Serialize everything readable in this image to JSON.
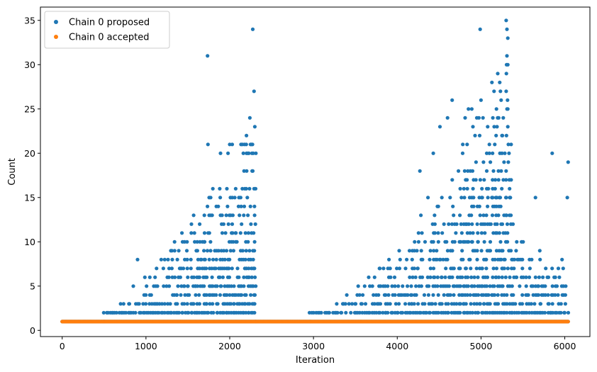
{
  "chart_data": {
    "type": "scatter",
    "title": "",
    "xlabel": "Iteration",
    "ylabel": "Count",
    "xlim": [
      -260,
      6300
    ],
    "ylim": [
      -0.7,
      36.5
    ],
    "xticks": [
      0,
      1000,
      2000,
      3000,
      4000,
      5000,
      6000
    ],
    "yticks": [
      0,
      5,
      10,
      15,
      20,
      25,
      30,
      35
    ],
    "grid": false,
    "legend_position": "top-left",
    "series": [
      {
        "name": "Chain 0 proposed",
        "color": "#1f77b4",
        "x_range": [
          0,
          6040
        ],
        "blocks": [
          {
            "x": [
              0,
              500
            ],
            "y": 1,
            "step": 10
          },
          {
            "x": [
              500,
              2310
            ],
            "y": 1,
            "step": 10
          },
          {
            "x": [
              2310,
              2960
            ],
            "y": 1,
            "step": 10
          },
          {
            "x": [
              2960,
              6040
            ],
            "y": 1,
            "step": 10
          }
        ],
        "bands": [
          {
            "x": [
              500,
              2310
            ],
            "levels": [
              2,
              3,
              4,
              5,
              6,
              7,
              8,
              9,
              10,
              11,
              12,
              13,
              14,
              15,
              16,
              18,
              20,
              21,
              22,
              24
            ],
            "envelope": [
              [
                500,
                2
              ],
              [
                800,
                5
              ],
              [
                1000,
                7
              ],
              [
                1300,
                10
              ],
              [
                1600,
                14
              ],
              [
                1900,
                18
              ],
              [
                2100,
                21
              ],
              [
                2310,
                24
              ]
            ],
            "step": 22
          },
          {
            "x": [
              2960,
              6040
            ],
            "levels": [
              2,
              3,
              4,
              5,
              6,
              7,
              8,
              9,
              10,
              11,
              12,
              13,
              14,
              15,
              16,
              17,
              18,
              19,
              20,
              21,
              22,
              23,
              24,
              25,
              26,
              27,
              28,
              29,
              30
            ],
            "envelope": [
              [
                2960,
                2
              ],
              [
                3300,
                4
              ],
              [
                3700,
                7
              ],
              [
                4000,
                10
              ],
              [
                4300,
                14
              ],
              [
                4600,
                18
              ],
              [
                4900,
                23
              ],
              [
                5200,
                28
              ],
              [
                5330,
                30
              ],
              [
                5400,
                12
              ],
              [
                5700,
                9
              ],
              [
                6040,
                8
              ]
            ],
            "step": 24
          }
        ],
        "points": [
          [
            900,
            8
          ],
          [
            1735,
            31
          ],
          [
            1740,
            21
          ],
          [
            2275,
            34
          ],
          [
            2290,
            27
          ],
          [
            2300,
            23
          ],
          [
            4990,
            34
          ],
          [
            5300,
            35
          ],
          [
            5310,
            34
          ],
          [
            5320,
            33
          ],
          [
            5310,
            31
          ],
          [
            5305,
            30
          ],
          [
            5320,
            30
          ],
          [
            5130,
            28
          ],
          [
            5200,
            29
          ],
          [
            5240,
            26
          ],
          [
            5000,
            26
          ],
          [
            4655,
            26
          ],
          [
            5300,
            27
          ],
          [
            5320,
            25
          ],
          [
            4510,
            23
          ],
          [
            4600,
            24
          ],
          [
            4850,
            25
          ],
          [
            4890,
            25
          ],
          [
            4810,
            24
          ],
          [
            4950,
            24
          ],
          [
            5180,
            22
          ],
          [
            5250,
            22
          ],
          [
            5320,
            23
          ],
          [
            5360,
            21
          ],
          [
            4430,
            20
          ],
          [
            4270,
            18
          ],
          [
            5850,
            20
          ],
          [
            6040,
            19
          ],
          [
            6030,
            15
          ],
          [
            5650,
            15
          ],
          [
            2240,
            24
          ],
          [
            2200,
            22
          ],
          [
            2150,
            21
          ],
          [
            2280,
            20
          ],
          [
            2000,
            21
          ],
          [
            2030,
            21
          ],
          [
            1980,
            20
          ],
          [
            1890,
            20
          ]
        ]
      },
      {
        "name": "Chain 0 accepted",
        "color": "#ff7f0e",
        "x_range": [
          0,
          6040
        ],
        "y": 1
      }
    ]
  }
}
